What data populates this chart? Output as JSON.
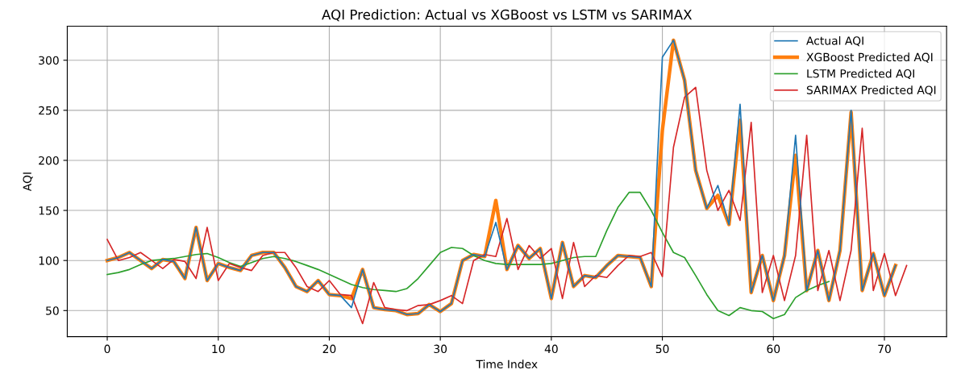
{
  "chart_data": {
    "type": "line",
    "title": "AQI Prediction: Actual vs XGBoost vs LSTM vs SARIMAX",
    "xlabel": "Time Index",
    "ylabel": "AQI",
    "xlim": [
      -3.6,
      75.6
    ],
    "xticks": [
      0,
      10,
      20,
      30,
      40,
      50,
      60,
      70
    ],
    "ylim": [
      24,
      334
    ],
    "yticks": [
      50,
      100,
      150,
      200,
      250,
      300
    ],
    "grid": true,
    "legend": "top right",
    "series": [
      {
        "name": "Actual AQI",
        "color": "#1f77b4",
        "x": [
          0,
          1,
          2,
          3,
          4,
          5,
          6,
          7,
          8,
          9,
          10,
          11,
          12,
          13,
          14,
          15,
          16,
          17,
          18,
          19,
          20,
          21,
          22,
          23,
          24,
          25,
          26,
          27,
          28,
          29,
          30,
          31,
          32,
          33,
          34,
          35,
          36,
          37,
          38,
          39,
          40,
          41,
          42,
          43,
          44,
          45,
          46,
          47,
          48,
          49,
          50,
          51,
          52,
          53,
          54,
          55,
          56,
          57,
          58,
          59,
          60,
          61,
          62,
          63,
          64,
          65,
          66,
          67,
          68,
          69,
          70,
          71
        ],
        "values": [
          100,
          103,
          108,
          100,
          92,
          101,
          99,
          82,
          133,
          80,
          97,
          93,
          90,
          105,
          108,
          108,
          93,
          74,
          69,
          80,
          66,
          65,
          53,
          91,
          53,
          51,
          50,
          46,
          47,
          56,
          49,
          57,
          100,
          106,
          104,
          138,
          91,
          115,
          102,
          112,
          62,
          118,
          74,
          85,
          83,
          95,
          105,
          104,
          103,
          74,
          303,
          320,
          280,
          190,
          152,
          175,
          136,
          256,
          68,
          105,
          60,
          105,
          225,
          70,
          110,
          60,
          110,
          250,
          70,
          107,
          65,
          95
        ]
      },
      {
        "name": "XGBoost Predicted AQI",
        "color": "#ff7f0e",
        "x": [
          0,
          1,
          2,
          3,
          4,
          5,
          6,
          7,
          8,
          9,
          10,
          11,
          12,
          13,
          14,
          15,
          16,
          17,
          18,
          19,
          20,
          21,
          22,
          23,
          24,
          25,
          26,
          27,
          28,
          29,
          30,
          31,
          32,
          33,
          34,
          35,
          36,
          37,
          38,
          39,
          40,
          41,
          42,
          43,
          44,
          45,
          46,
          47,
          48,
          49,
          50,
          51,
          52,
          53,
          54,
          55,
          56,
          57,
          58,
          59,
          60,
          61,
          62,
          63,
          64,
          65,
          66,
          67,
          68,
          69,
          70,
          71
        ],
        "values": [
          100,
          103,
          108,
          100,
          92,
          101,
          99,
          82,
          133,
          80,
          97,
          93,
          90,
          105,
          108,
          108,
          93,
          74,
          69,
          80,
          66,
          65,
          62,
          91,
          53,
          51,
          50,
          46,
          47,
          56,
          49,
          57,
          100,
          106,
          104,
          160,
          91,
          115,
          102,
          112,
          62,
          118,
          74,
          85,
          83,
          95,
          105,
          104,
          103,
          74,
          230,
          320,
          280,
          190,
          152,
          165,
          136,
          240,
          68,
          105,
          60,
          105,
          205,
          70,
          110,
          60,
          110,
          248,
          70,
          107,
          65,
          95
        ]
      },
      {
        "name": "LSTM Predicted AQI",
        "color": "#2ca02c",
        "x": [
          0,
          1,
          2,
          3,
          4,
          5,
          6,
          7,
          8,
          9,
          10,
          11,
          12,
          13,
          14,
          15,
          16,
          17,
          18,
          19,
          20,
          21,
          22,
          23,
          24,
          25,
          26,
          27,
          28,
          29,
          30,
          31,
          32,
          33,
          34,
          35,
          36,
          37,
          38,
          39,
          40,
          41,
          42,
          43,
          44,
          45,
          46,
          47,
          48,
          49,
          50,
          51,
          52,
          53,
          54,
          55,
          56,
          57,
          58,
          59,
          60,
          61,
          62,
          63,
          64,
          65
        ],
        "values": [
          86,
          88,
          91,
          96,
          100,
          101,
          102,
          104,
          106,
          107,
          103,
          98,
          94,
          98,
          102,
          104,
          102,
          99,
          95,
          91,
          86,
          81,
          76,
          73,
          71,
          70,
          69,
          72,
          82,
          95,
          108,
          113,
          112,
          105,
          100,
          97,
          96,
          96,
          96,
          96,
          97,
          100,
          103,
          104,
          104,
          130,
          153,
          168,
          168,
          150,
          128,
          108,
          103,
          85,
          66,
          50,
          45,
          53,
          50,
          49,
          42,
          46,
          63,
          70,
          75,
          79
        ]
      },
      {
        "name": "SARIMAX Predicted AQI",
        "color": "#d62728",
        "x": [
          0,
          1,
          2,
          3,
          4,
          5,
          6,
          7,
          8,
          9,
          10,
          11,
          12,
          13,
          14,
          15,
          16,
          17,
          18,
          19,
          20,
          21,
          22,
          23,
          24,
          25,
          26,
          27,
          28,
          29,
          30,
          31,
          32,
          33,
          34,
          35,
          36,
          37,
          38,
          39,
          40,
          41,
          42,
          43,
          44,
          45,
          46,
          47,
          48,
          49,
          50,
          51,
          52,
          53,
          54,
          55,
          56,
          57,
          58,
          59,
          60,
          61,
          62,
          63,
          64,
          65,
          66,
          67,
          68,
          69,
          70,
          71,
          72
        ],
        "values": [
          121,
          100,
          103,
          108,
          100,
          92,
          101,
          99,
          82,
          133,
          80,
          97,
          93,
          90,
          105,
          108,
          108,
          93,
          74,
          69,
          80,
          66,
          65,
          37,
          78,
          53,
          51,
          50,
          55,
          56,
          60,
          65,
          57,
          100,
          106,
          104,
          142,
          91,
          115,
          102,
          112,
          62,
          118,
          74,
          85,
          83,
          95,
          105,
          104,
          108,
          84,
          213,
          263,
          273,
          190,
          150,
          170,
          140,
          238,
          68,
          105,
          60,
          105,
          225,
          70,
          110,
          60,
          110,
          232,
          70,
          107,
          65,
          95
        ]
      }
    ]
  }
}
